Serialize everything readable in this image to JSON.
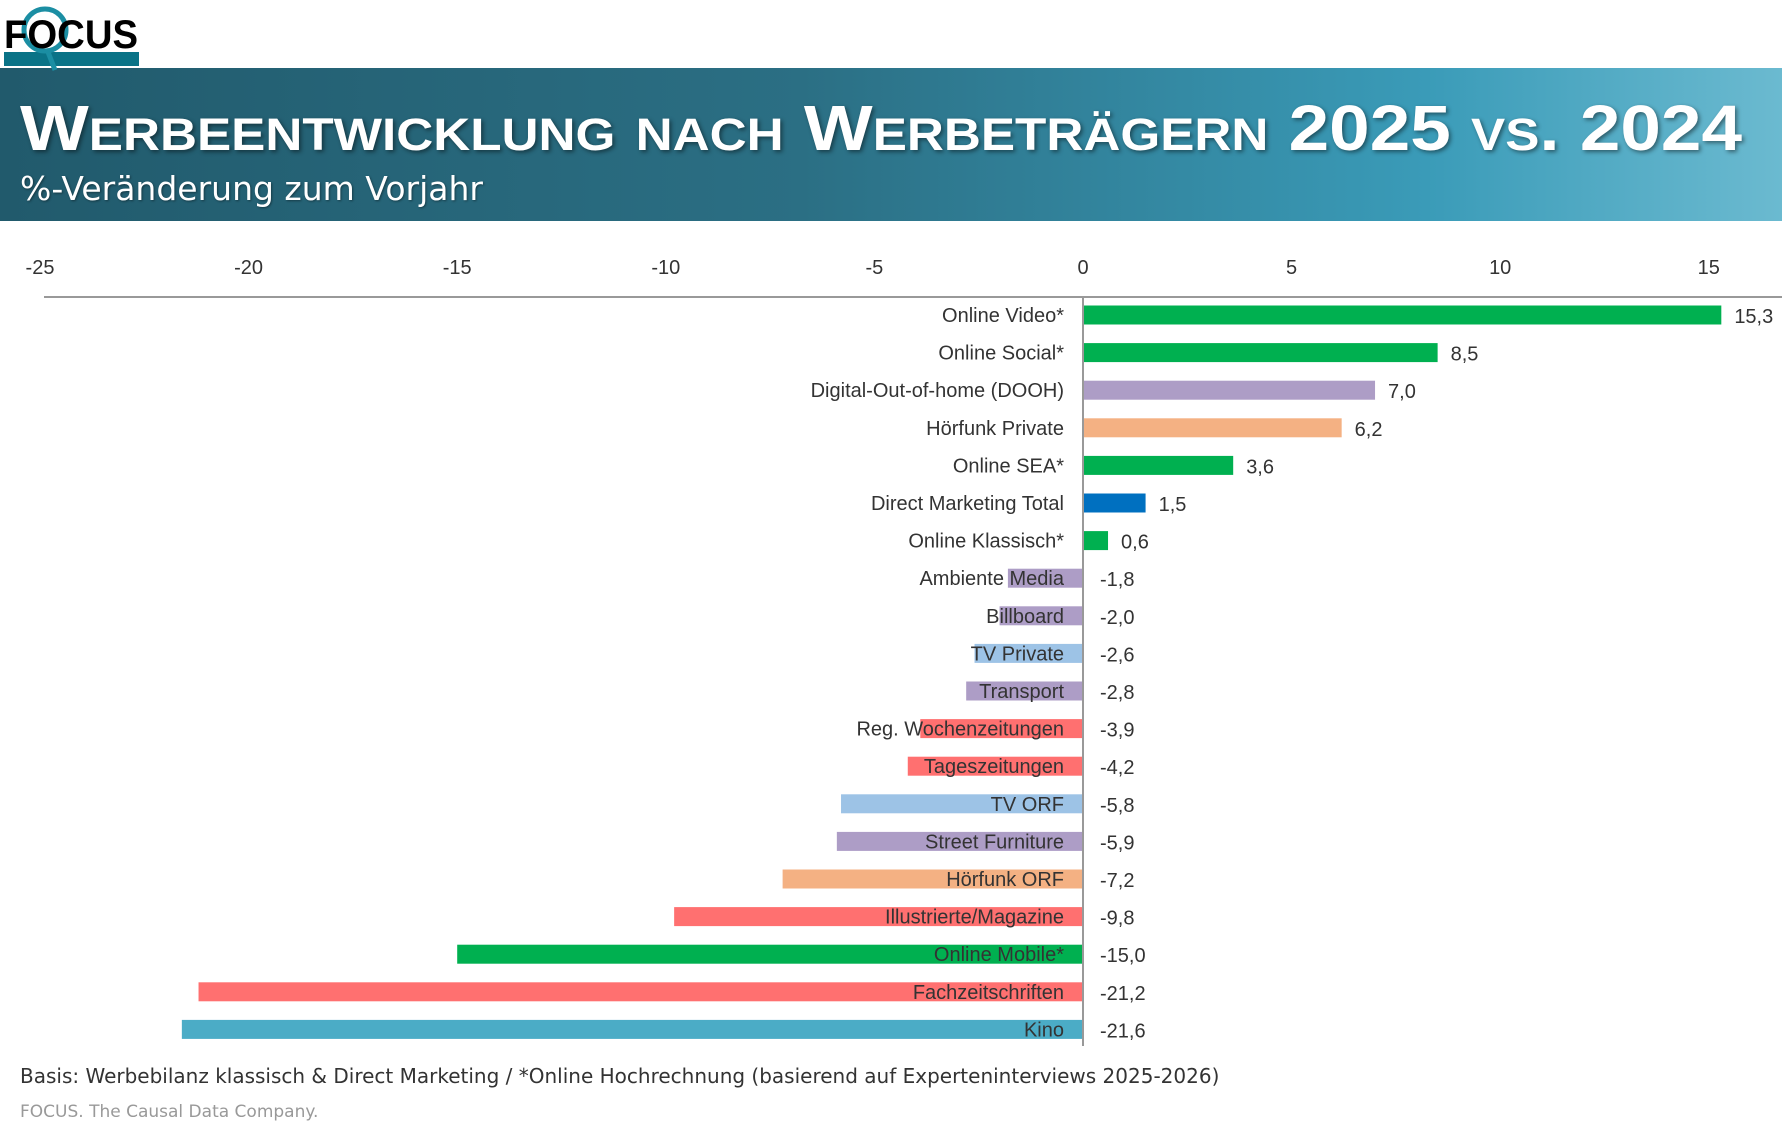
{
  "logo_text": "FOCUS",
  "header": {
    "title": "Werbeentwicklung nach Werbeträgern 2025 vs. 2024",
    "subtitle": "%-Veränderung zum Vorjahr"
  },
  "chart_data": {
    "type": "bar",
    "orientation": "horizontal",
    "title": "Werbeentwicklung nach Werbeträgern 2025 vs. 2024",
    "subtitle": "%-Veränderung zum Vorjahr",
    "xlim": [
      -25,
      17
    ],
    "xticks": [
      -25,
      -20,
      -15,
      -10,
      -5,
      0,
      5,
      10,
      15
    ],
    "xtick_labels": [
      "-25",
      "-20",
      "-15",
      "-10",
      "-5",
      "0",
      "5",
      "10",
      "15"
    ],
    "grid": false,
    "axis_position": "top",
    "categories": [
      "Online Video*",
      "Online Social*",
      "Digital-Out-of-home (DOOH)",
      "Hörfunk Private",
      "Online SEA*",
      "Direct Marketing Total",
      "Online Klassisch*",
      "Ambiente Media",
      "Billboard",
      "TV Private",
      "Transport",
      "Reg. Wochenzeitungen",
      "Tageszeitungen",
      "TV ORF",
      "Street Furniture",
      "Hörfunk ORF",
      "Illustrierte/Magazine",
      "Online Mobile*",
      "Fachzeitschriften",
      "Kino"
    ],
    "values": [
      15.3,
      8.5,
      7.0,
      6.2,
      3.6,
      1.5,
      0.6,
      -1.8,
      -2.0,
      -2.6,
      -2.8,
      -3.9,
      -4.2,
      -5.8,
      -5.9,
      -7.2,
      -9.8,
      -15.0,
      -21.2,
      -21.6
    ],
    "value_labels": [
      "15,3",
      "8,5",
      "7,0",
      "6,2",
      "3,6",
      "1,5",
      "0,6",
      "-1,8",
      "-2,0",
      "-2,6",
      "-2,8",
      "-3,9",
      "-4,2",
      "-5,8",
      "-5,9",
      "-7,2",
      "-9,8",
      "-15,0",
      "-21,2",
      "-21,6"
    ],
    "colors": [
      "#00b050",
      "#00b050",
      "#ad9dc6",
      "#f4b183",
      "#00b050",
      "#0070c0",
      "#00b050",
      "#ad9dc6",
      "#ad9dc6",
      "#9dc3e6",
      "#ad9dc6",
      "#ff7070",
      "#ff7070",
      "#9dc3e6",
      "#ad9dc6",
      "#f4b183",
      "#ff7070",
      "#00b050",
      "#ff7070",
      "#4bacc6"
    ]
  },
  "footer": {
    "note": "Basis: Werbebilanz klassisch & Direct Marketing / *Online Hochrechnung (basierend auf Experteninterviews 2025-2026)",
    "source": "FOCUS. The Causal Data Company."
  }
}
